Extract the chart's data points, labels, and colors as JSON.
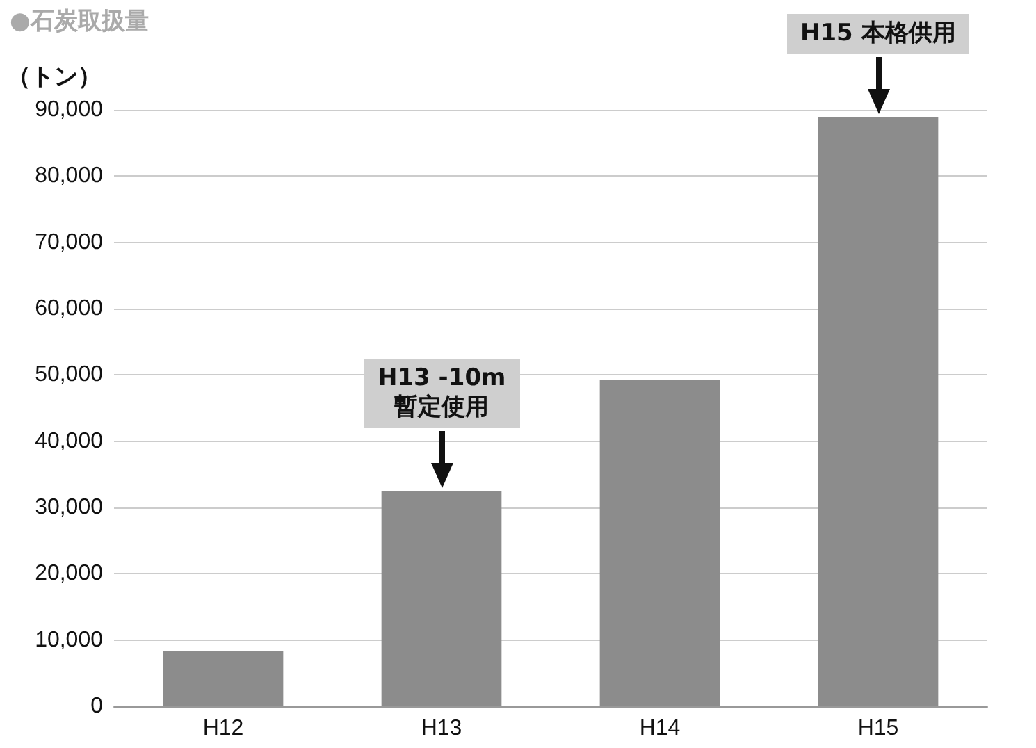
{
  "chart_data": {
    "type": "bar",
    "title": "●石炭取扱量",
    "ylabel": "（トン）",
    "categories": [
      "H12",
      "H13",
      "H14",
      "H15"
    ],
    "values": [
      8400,
      32500,
      49300,
      88900
    ],
    "color": "#8c8c8c",
    "ylim": [
      0,
      90000
    ],
    "yticks": [
      0,
      {
        "value": 10000,
        "label": "10,000"
      },
      {
        "value": 20000,
        "label": "20,000"
      },
      {
        "value": 30000,
        "label": "30,000"
      },
      {
        "value": 40000,
        "label": "40,000"
      },
      {
        "value": 50000,
        "label": "50,000"
      },
      {
        "value": 60000,
        "label": "60,000"
      },
      {
        "value": 70000,
        "label": "70,000"
      },
      {
        "value": 80000,
        "label": "80,000"
      },
      {
        "value": 90000,
        "label": "90,000"
      }
    ],
    "grid": "y",
    "annotations": [
      {
        "text": "H13 -10m\n暫定使用",
        "x": "H13",
        "y": 32500
      },
      {
        "text": "H15 本格供用",
        "x": "H15",
        "y": 88900
      }
    ]
  }
}
